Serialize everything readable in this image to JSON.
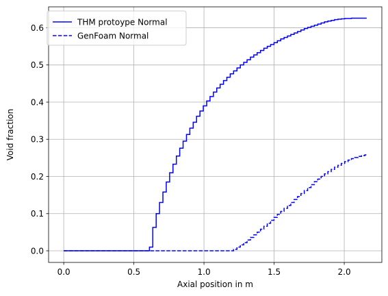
{
  "chart_data": {
    "type": "line",
    "title": "",
    "xlabel": "Axial position in m",
    "ylabel": "Void fraction",
    "xlim": [
      -0.108,
      2.268
    ],
    "ylim": [
      -0.0313,
      0.6563
    ],
    "xticks": [
      0.0,
      0.5,
      1.0,
      1.5,
      2.0
    ],
    "xtick_labels": [
      "0.0",
      "0.5",
      "1.0",
      "1.5",
      "2.0"
    ],
    "yticks": [
      0.0,
      0.1,
      0.2,
      0.3,
      0.4,
      0.5,
      0.6
    ],
    "ytick_labels": [
      "0.0",
      "0.1",
      "0.2",
      "0.3",
      "0.4",
      "0.5",
      "0.6"
    ],
    "grid": true,
    "legend_position": "top-left",
    "series": [
      {
        "name": "THM protoype Normal",
        "color": "#0000ff",
        "line_style": "solid",
        "step": true,
        "x": [
          0.0,
          0.587,
          0.611,
          0.635,
          0.659,
          0.683,
          0.707,
          0.731,
          0.755,
          0.779,
          0.803,
          0.827,
          0.851,
          0.875,
          0.899,
          0.923,
          0.947,
          0.971,
          0.995,
          1.019,
          1.043,
          1.067,
          1.091,
          1.115,
          1.139,
          1.163,
          1.187,
          1.211,
          1.235,
          1.259,
          1.283,
          1.307,
          1.331,
          1.355,
          1.379,
          1.403,
          1.427,
          1.451,
          1.475,
          1.499,
          1.523,
          1.547,
          1.571,
          1.595,
          1.619,
          1.643,
          1.667,
          1.691,
          1.715,
          1.739,
          1.763,
          1.787,
          1.811,
          1.835,
          1.859,
          1.883,
          1.907,
          1.931,
          1.955,
          1.979,
          2.003,
          2.027,
          2.051,
          2.075,
          2.099,
          2.123,
          2.147,
          2.16
        ],
        "y": [
          0.0,
          0.0,
          0.01,
          0.063,
          0.1,
          0.13,
          0.158,
          0.185,
          0.21,
          0.233,
          0.255,
          0.276,
          0.295,
          0.313,
          0.33,
          0.346,
          0.362,
          0.376,
          0.39,
          0.403,
          0.415,
          0.427,
          0.438,
          0.448,
          0.458,
          0.467,
          0.476,
          0.484,
          0.492,
          0.5,
          0.507,
          0.514,
          0.521,
          0.527,
          0.533,
          0.539,
          0.545,
          0.55,
          0.555,
          0.56,
          0.565,
          0.57,
          0.574,
          0.578,
          0.582,
          0.586,
          0.59,
          0.594,
          0.598,
          0.601,
          0.604,
          0.607,
          0.61,
          0.613,
          0.616,
          0.618,
          0.62,
          0.622,
          0.623,
          0.624,
          0.625,
          0.625,
          0.626,
          0.626,
          0.626,
          0.626,
          0.626,
          0.626
        ]
      },
      {
        "name": "GenFoam Normal",
        "color": "#0000ff",
        "line_style": "dashed",
        "step": true,
        "x": [
          0.0,
          1.187,
          1.211,
          1.235,
          1.259,
          1.283,
          1.307,
          1.331,
          1.355,
          1.379,
          1.403,
          1.427,
          1.451,
          1.475,
          1.499,
          1.523,
          1.547,
          1.571,
          1.595,
          1.619,
          1.643,
          1.667,
          1.691,
          1.715,
          1.739,
          1.763,
          1.787,
          1.811,
          1.835,
          1.859,
          1.883,
          1.907,
          1.931,
          1.955,
          1.979,
          2.003,
          2.027,
          2.051,
          2.075,
          2.099,
          2.123,
          2.147,
          2.16
        ],
        "y": [
          0.0,
          0.0,
          0.004,
          0.01,
          0.016,
          0.022,
          0.029,
          0.036,
          0.043,
          0.05,
          0.058,
          0.066,
          0.074,
          0.082,
          0.09,
          0.098,
          0.106,
          0.114,
          0.122,
          0.13,
          0.138,
          0.146,
          0.154,
          0.162,
          0.17,
          0.178,
          0.186,
          0.193,
          0.2,
          0.207,
          0.213,
          0.219,
          0.225,
          0.23,
          0.235,
          0.24,
          0.244,
          0.248,
          0.251,
          0.254,
          0.256,
          0.258,
          0.258
        ]
      }
    ]
  }
}
